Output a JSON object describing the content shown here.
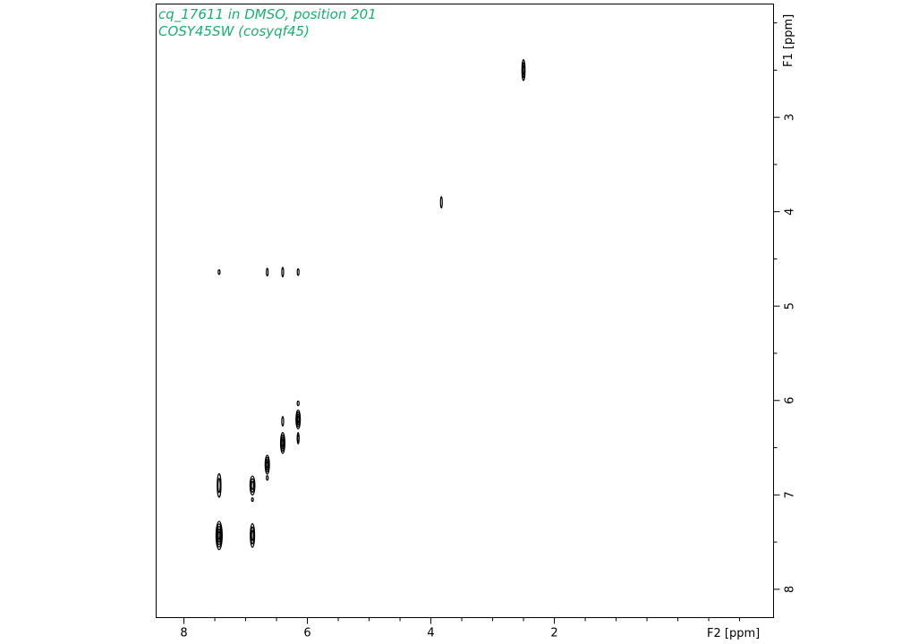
{
  "chart_data": {
    "type": "contour",
    "title_lines": [
      "cq_17611 in DMSO, position 201",
      "COSY45SW (cosyqf45)"
    ],
    "xlabel": "F2 [ppm]",
    "ylabel": "F1 [ppm]",
    "xlim": [
      8.45,
      -1.55
    ],
    "ylim": [
      1.8,
      8.3
    ],
    "x_major_ticks": [
      8,
      6,
      4,
      2
    ],
    "x_minor_ticks": [
      7.5,
      7,
      6.5,
      5.5,
      5,
      4.5,
      3.5,
      3,
      2.5,
      1.5,
      1,
      0.5,
      0,
      -0.5,
      -1
    ],
    "y_major_ticks": [
      3,
      4,
      5,
      6,
      7,
      8
    ],
    "y_minor_ticks": [
      2,
      2.5,
      3.5,
      4.5,
      5.5,
      6.5,
      7.5
    ],
    "y_tick_labels_shown": [
      3,
      4,
      5,
      6,
      7,
      8
    ],
    "x_tick_labels_shown": [
      8,
      6,
      4,
      2
    ],
    "peaks": [
      {
        "f2": 2.5,
        "f1": 2.5,
        "h": 0.22,
        "w": 0.05,
        "levels": 3
      },
      {
        "f2": 3.83,
        "f1": 3.9,
        "h": 0.12,
        "w": 0.02,
        "levels": 1
      },
      {
        "f2": 7.43,
        "f1": 4.64,
        "h": 0.05,
        "w": 0.02,
        "levels": 1
      },
      {
        "f2": 6.65,
        "f1": 4.64,
        "h": 0.08,
        "w": 0.02,
        "levels": 1
      },
      {
        "f2": 6.4,
        "f1": 4.64,
        "h": 0.1,
        "w": 0.02,
        "levels": 1
      },
      {
        "f2": 6.15,
        "f1": 4.64,
        "h": 0.07,
        "w": 0.02,
        "levels": 1
      },
      {
        "f2": 6.15,
        "f1": 6.2,
        "h": 0.2,
        "w": 0.07,
        "levels": 4
      },
      {
        "f2": 6.15,
        "f1": 6.03,
        "h": 0.05,
        "w": 0.03,
        "levels": 1
      },
      {
        "f2": 6.15,
        "f1": 6.4,
        "h": 0.12,
        "w": 0.03,
        "levels": 2
      },
      {
        "f2": 6.4,
        "f1": 6.45,
        "h": 0.22,
        "w": 0.07,
        "levels": 4
      },
      {
        "f2": 6.4,
        "f1": 6.22,
        "h": 0.1,
        "w": 0.03,
        "levels": 1
      },
      {
        "f2": 6.65,
        "f1": 6.68,
        "h": 0.2,
        "w": 0.07,
        "levels": 4
      },
      {
        "f2": 6.65,
        "f1": 6.82,
        "h": 0.05,
        "w": 0.03,
        "levels": 1
      },
      {
        "f2": 6.89,
        "f1": 6.9,
        "h": 0.2,
        "w": 0.08,
        "levels": 3
      },
      {
        "f2": 6.89,
        "f1": 7.05,
        "h": 0.03,
        "w": 0.02,
        "levels": 1
      },
      {
        "f2": 7.43,
        "f1": 6.9,
        "h": 0.25,
        "w": 0.06,
        "levels": 2
      },
      {
        "f2": 7.43,
        "f1": 7.43,
        "h": 0.3,
        "w": 0.1,
        "levels": 5
      },
      {
        "f2": 6.89,
        "f1": 7.43,
        "h": 0.25,
        "w": 0.07,
        "levels": 3
      }
    ]
  }
}
